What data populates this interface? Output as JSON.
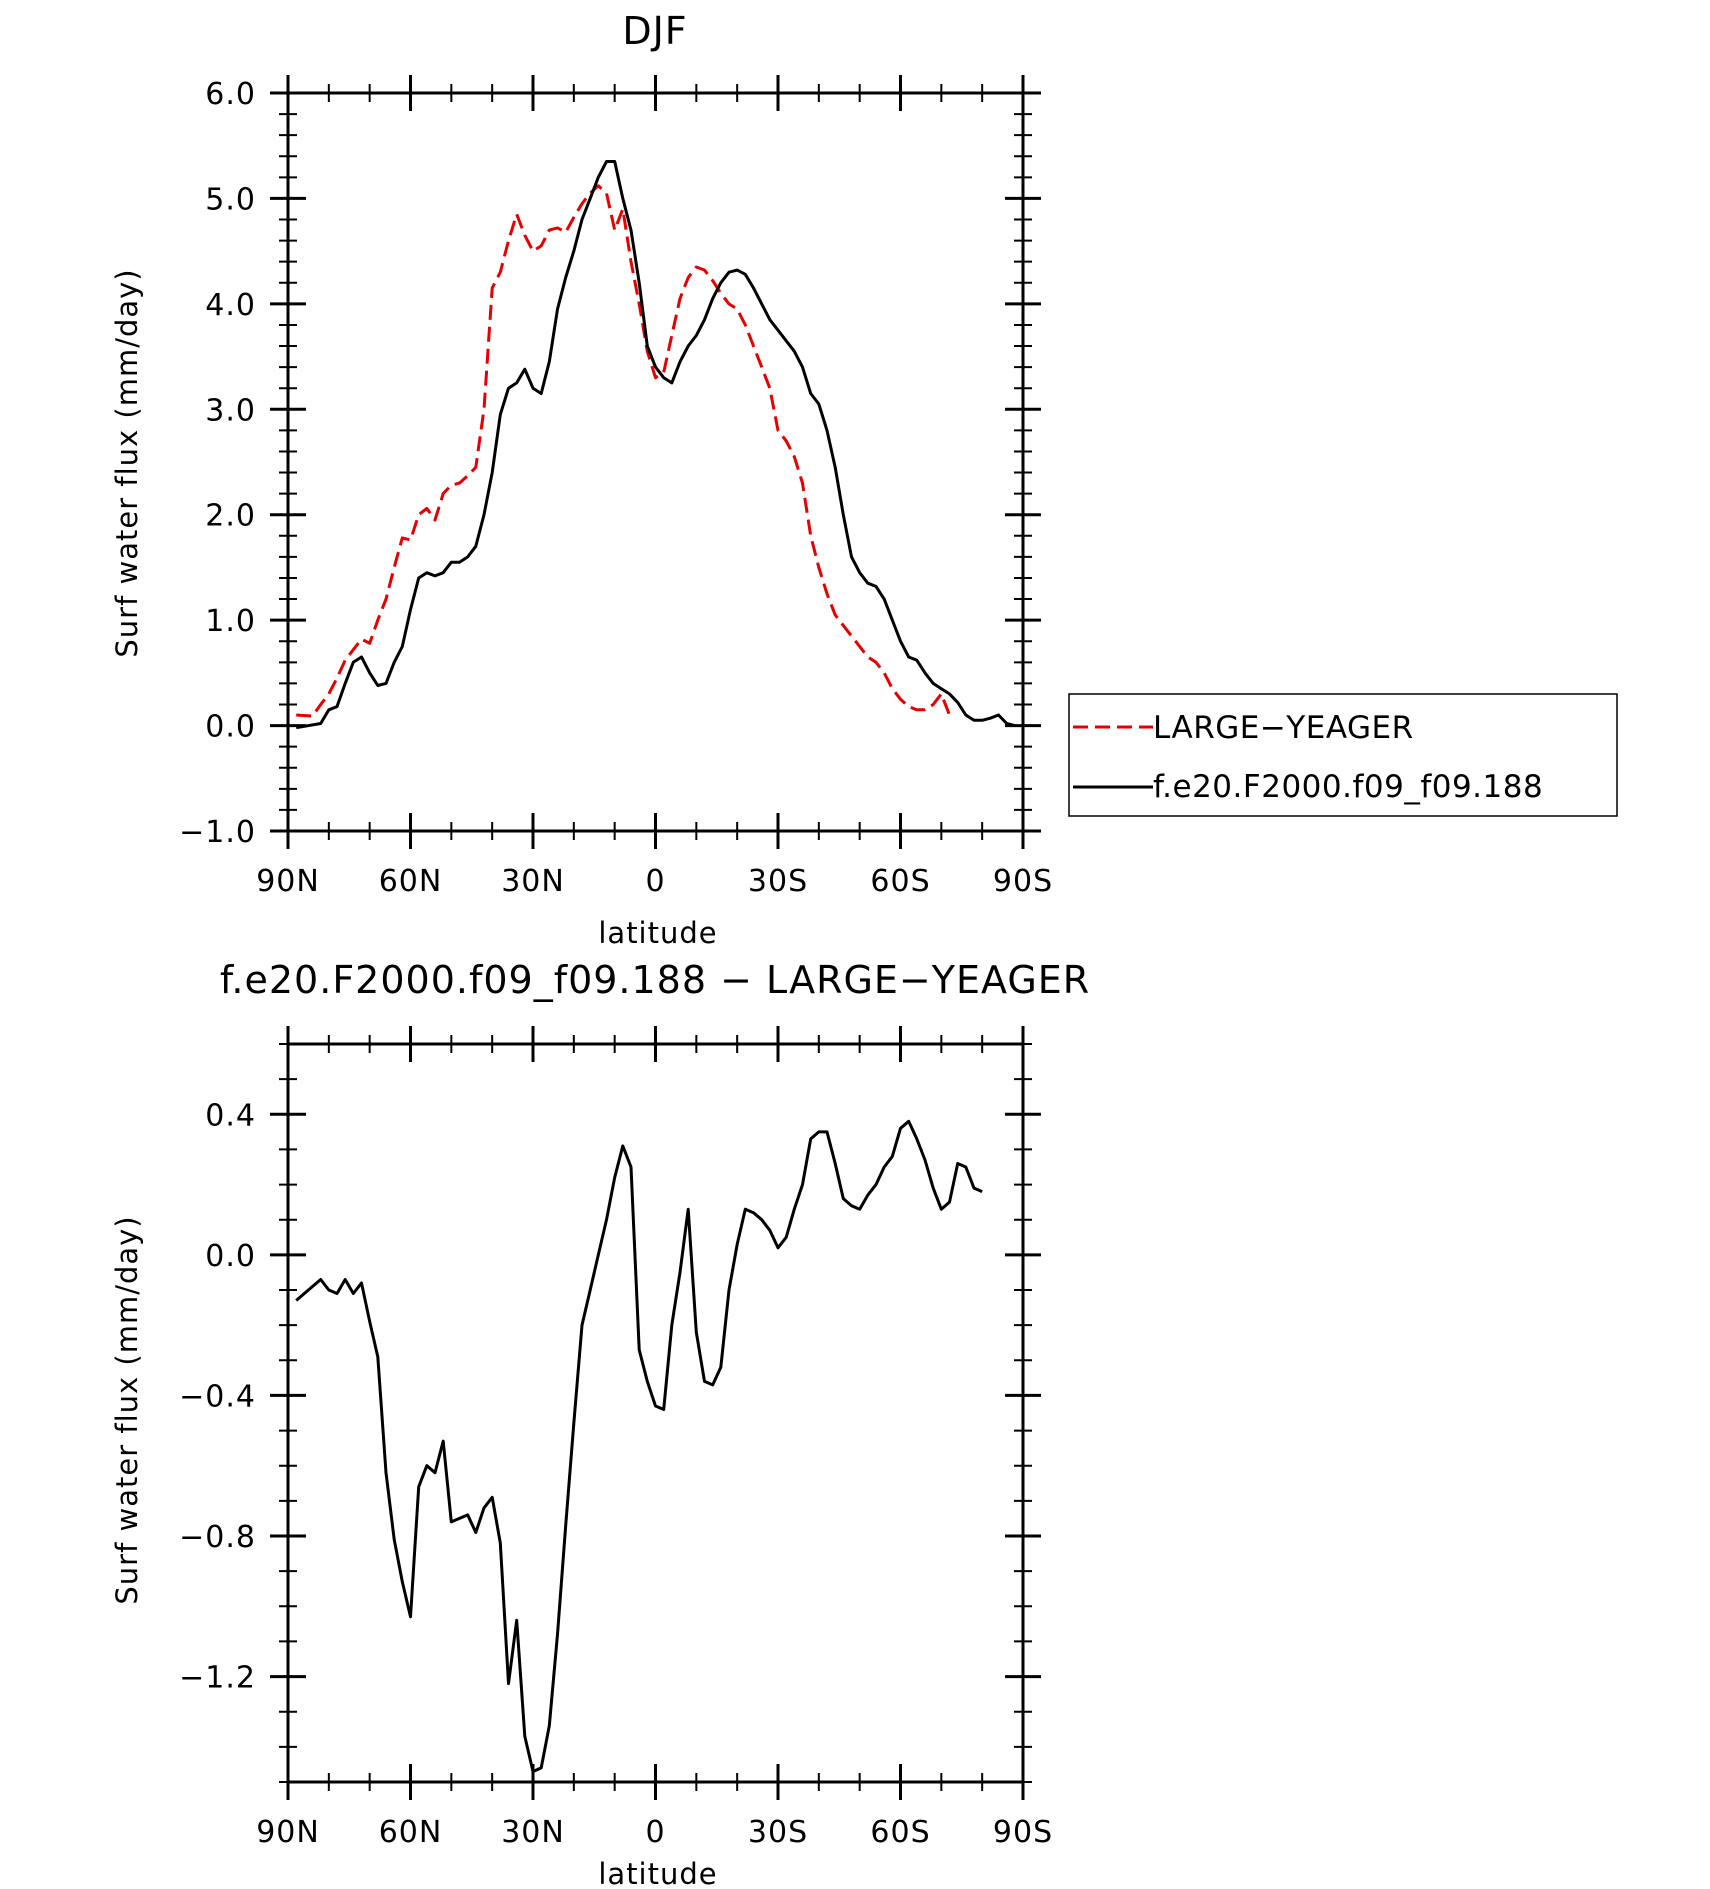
{
  "chart_data": [
    {
      "type": "line",
      "title": "DJF",
      "xlabel": "latitude",
      "ylabel": "Surf water flux (mm/day)",
      "xlim": [
        90,
        -90
      ],
      "ylim": [
        -1.0,
        6.0
      ],
      "yticks": [
        "6.0",
        "5.0",
        "4.0",
        "3.0",
        "2.0",
        "1.0",
        "0.0",
        "−1.0"
      ],
      "ytick_values": [
        6.0,
        5.0,
        4.0,
        3.0,
        2.0,
        1.0,
        0.0,
        -1.0
      ],
      "xticks": [
        "90N",
        "60N",
        "30N",
        "0",
        "30S",
        "60S",
        "90S"
      ],
      "xtick_values": [
        90,
        60,
        30,
        0,
        -30,
        -60,
        -90
      ],
      "legend_position": "right-outside",
      "series": [
        {
          "name": "LARGE−YEAGER",
          "color": "#e60000",
          "dash": "dashed",
          "x": [
            88,
            84,
            82,
            80,
            78,
            76,
            74,
            72,
            70,
            68,
            66,
            64,
            62,
            60,
            58,
            56,
            54,
            52,
            50,
            48,
            46,
            44,
            42,
            40,
            38,
            36,
            34,
            32,
            30,
            28,
            26,
            24,
            22,
            20,
            18,
            16,
            14,
            12,
            10,
            8,
            6,
            4,
            2,
            0,
            -2,
            -4,
            -6,
            -8,
            -10,
            -12,
            -14,
            -16,
            -18,
            -20,
            -22,
            -24,
            -26,
            -28,
            -30,
            -32,
            -34,
            -36,
            -38,
            -40,
            -42,
            -44,
            -46,
            -48,
            -50,
            -52,
            -54,
            -56,
            -58,
            -60,
            -62,
            -64,
            -66,
            -68,
            -70,
            -72,
            -74,
            -76,
            -78,
            -80
          ],
          "values": [
            0.1,
            0.09,
            0.2,
            0.3,
            0.45,
            0.62,
            0.72,
            0.82,
            0.78,
            1.0,
            1.2,
            1.5,
            1.78,
            1.76,
            2.0,
            2.06,
            1.95,
            2.2,
            2.28,
            2.3,
            2.37,
            2.45,
            3.0,
            4.15,
            4.3,
            4.6,
            4.85,
            4.65,
            4.5,
            4.55,
            4.7,
            4.72,
            4.68,
            4.82,
            4.95,
            5.05,
            5.12,
            5.05,
            4.7,
            4.9,
            4.4,
            4.0,
            3.55,
            3.3,
            3.35,
            3.7,
            4.05,
            4.25,
            4.35,
            4.32,
            4.22,
            4.1,
            4.0,
            3.95,
            3.8,
            3.6,
            3.4,
            3.2,
            2.8,
            2.7,
            2.55,
            2.3,
            1.8,
            1.5,
            1.25,
            1.05,
            0.95,
            0.85,
            0.75,
            0.65,
            0.6,
            0.5,
            0.35,
            0.25,
            0.18,
            0.15,
            0.15,
            0.2,
            0.3,
            0.1,
            null,
            null,
            null,
            null
          ]
        },
        {
          "name": "f.e20.F2000.f09_f09.188",
          "color": "#000000",
          "dash": "solid",
          "x": [
            88,
            82,
            80,
            78,
            76,
            74,
            72,
            70,
            68,
            66,
            64,
            62,
            60,
            58,
            56,
            54,
            52,
            50,
            48,
            46,
            44,
            42,
            40,
            38,
            36,
            34,
            32,
            30,
            28,
            26,
            24,
            22,
            20,
            18,
            16,
            14,
            12,
            10,
            8,
            6,
            4,
            2,
            0,
            -2,
            -4,
            -6,
            -8,
            -10,
            -12,
            -14,
            -16,
            -18,
            -20,
            -22,
            -24,
            -26,
            -28,
            -30,
            -32,
            -34,
            -36,
            -38,
            -40,
            -42,
            -44,
            -46,
            -48,
            -50,
            -52,
            -54,
            -56,
            -58,
            -60,
            -62,
            -64,
            -66,
            -68,
            -70,
            -72,
            -74,
            -76,
            -78,
            -80,
            -82,
            -84,
            -86,
            -88
          ],
          "values": [
            -0.02,
            0.02,
            0.15,
            0.18,
            0.4,
            0.6,
            0.65,
            0.5,
            0.38,
            0.4,
            0.6,
            0.75,
            1.1,
            1.4,
            1.45,
            1.42,
            1.45,
            1.55,
            1.55,
            1.6,
            1.7,
            2.0,
            2.4,
            2.95,
            3.2,
            3.25,
            3.38,
            3.2,
            3.15,
            3.45,
            3.95,
            4.25,
            4.5,
            4.8,
            5.0,
            5.2,
            5.35,
            5.35,
            5.0,
            4.7,
            4.2,
            3.6,
            3.4,
            3.3,
            3.25,
            3.45,
            3.6,
            3.7,
            3.85,
            4.05,
            4.2,
            4.3,
            4.32,
            4.28,
            4.15,
            4.0,
            3.85,
            3.75,
            3.65,
            3.55,
            3.4,
            3.15,
            3.05,
            2.8,
            2.45,
            2.0,
            1.6,
            1.45,
            1.35,
            1.32,
            1.2,
            1.0,
            0.8,
            0.65,
            0.62,
            0.5,
            0.4,
            0.35,
            0.3,
            0.22,
            0.1,
            0.05,
            0.05,
            0.07,
            0.1,
            0.02,
            0.0
          ]
        }
      ]
    },
    {
      "type": "line",
      "title": "f.e20.F2000.f09_f09.188 − LARGE−YEAGER",
      "xlabel": "latitude",
      "ylabel": "Surf water flux (mm/day)",
      "xlim": [
        90,
        -90
      ],
      "ylim": [
        -1.5,
        0.6
      ],
      "yticks": [
        "0.4",
        "0.0",
        "−0.4",
        "−0.8",
        "−1.2"
      ],
      "ytick_values": [
        0.4,
        0.0,
        -0.4,
        -0.8,
        -1.2
      ],
      "xticks": [
        "90N",
        "60N",
        "30N",
        "0",
        "30S",
        "60S",
        "90S"
      ],
      "xtick_values": [
        90,
        60,
        30,
        0,
        -30,
        -60,
        -90
      ],
      "series": [
        {
          "color": "#000000",
          "dash": "solid",
          "x": [
            88,
            86,
            84,
            82,
            80,
            78,
            76,
            74,
            72,
            70,
            68,
            66,
            64,
            62,
            60,
            58,
            56,
            54,
            52,
            50,
            48,
            46,
            44,
            42,
            40,
            38,
            36,
            34,
            32,
            30,
            28,
            26,
            24,
            22,
            20,
            18,
            16,
            14,
            12,
            10,
            8,
            6,
            4,
            2,
            0,
            -2,
            -4,
            -6,
            -8,
            -10,
            -12,
            -14,
            -16,
            -18,
            -20,
            -22,
            -24,
            -26,
            -28,
            -30,
            -32,
            -34,
            -36,
            -38,
            -40,
            -42,
            -44,
            -46,
            -48,
            -50,
            -52,
            -54,
            -56,
            -58,
            -60,
            -62,
            -64,
            -66,
            -68,
            -70,
            -72,
            -74,
            -76,
            -78,
            -80
          ],
          "values": [
            -0.13,
            -0.11,
            -0.09,
            -0.07,
            -0.1,
            -0.11,
            -0.07,
            -0.11,
            -0.08,
            -0.19,
            -0.29,
            -0.62,
            -0.81,
            -0.93,
            -1.03,
            -0.66,
            -0.6,
            -0.62,
            -0.53,
            -0.76,
            -0.75,
            -0.74,
            -0.79,
            -0.72,
            -0.69,
            -0.82,
            -1.22,
            -1.04,
            -1.37,
            -1.47,
            -1.46,
            -1.34,
            -1.08,
            -0.77,
            -0.48,
            -0.2,
            -0.1,
            0.0,
            0.1,
            0.22,
            0.31,
            0.25,
            -0.27,
            -0.36,
            -0.43,
            -0.44,
            -0.2,
            -0.05,
            0.13,
            -0.22,
            -0.36,
            -0.37,
            -0.32,
            -0.1,
            0.03,
            0.13,
            0.12,
            0.1,
            0.07,
            0.02,
            0.05,
            0.13,
            0.2,
            0.33,
            0.35,
            0.35,
            0.26,
            0.16,
            0.14,
            0.13,
            0.17,
            0.2,
            0.25,
            0.28,
            0.36,
            0.38,
            0.33,
            0.27,
            0.19,
            0.13,
            0.15,
            0.26,
            0.25,
            0.19,
            0.18
          ]
        }
      ]
    }
  ]
}
